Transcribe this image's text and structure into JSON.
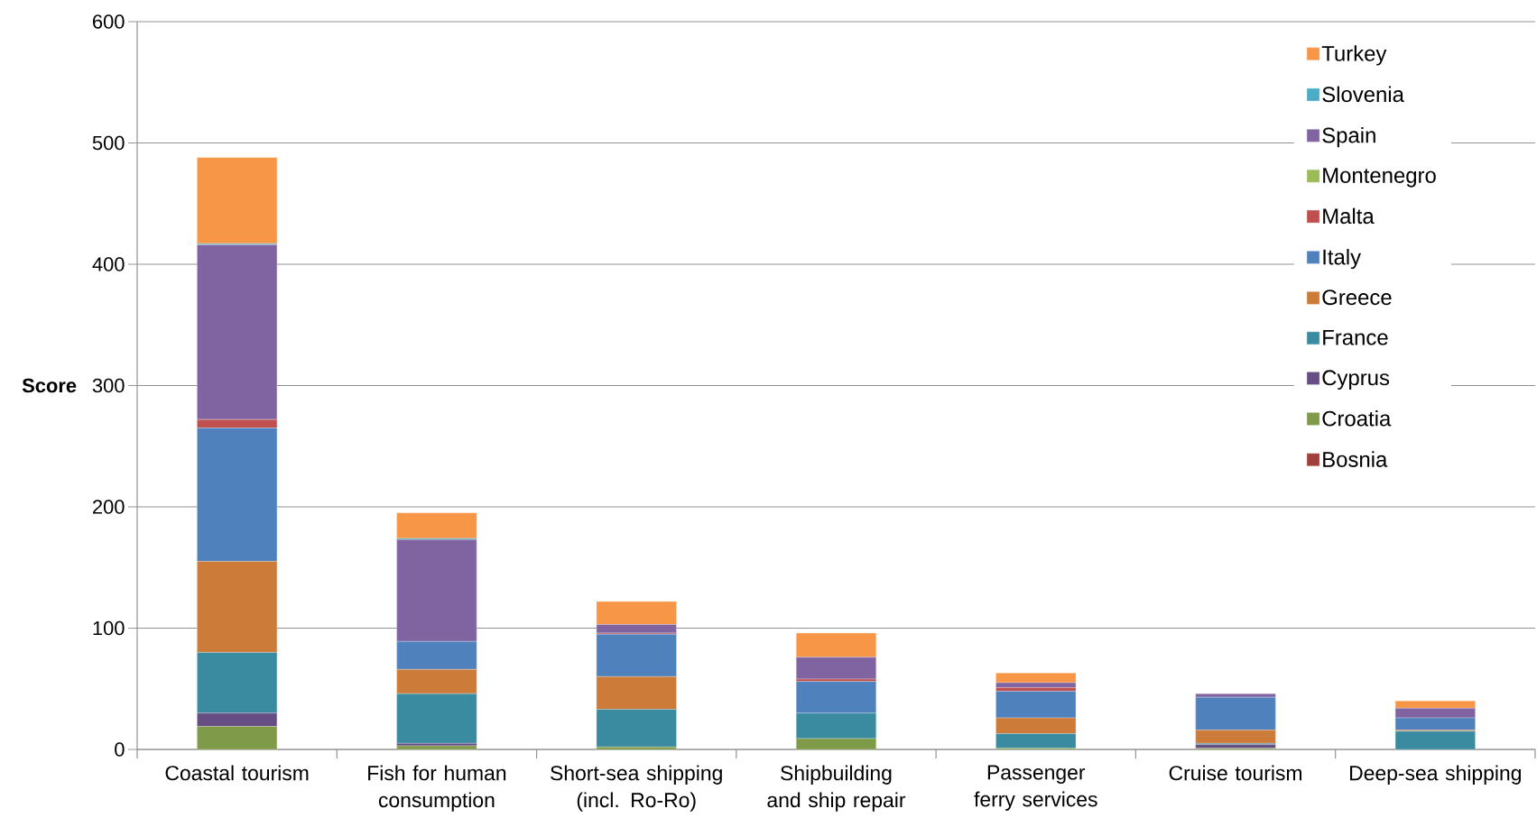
{
  "chart_data": {
    "type": "bar",
    "stacked": true,
    "ylabel": "Score",
    "categories": [
      "Coastal tourism",
      "Fish for human consumption",
      "Short-sea shipping (incl. Ro-Ro)",
      "Shipbuilding and ship repair",
      "Passenger ferry services",
      "Cruise tourism",
      "Deep-sea shipping"
    ],
    "series": [
      {
        "name": "Bosnia",
        "color": "#a23e3c",
        "values": [
          0,
          0,
          0,
          0,
          0,
          0,
          0
        ]
      },
      {
        "name": "Croatia",
        "color": "#7f9a48",
        "values": [
          19,
          3,
          2,
          9,
          1,
          1,
          0
        ]
      },
      {
        "name": "Cyprus",
        "color": "#664e84",
        "values": [
          11,
          2,
          0,
          0,
          0,
          3,
          0
        ]
      },
      {
        "name": "France",
        "color": "#3a8ba0",
        "values": [
          50,
          41,
          31,
          21,
          12,
          1,
          15
        ]
      },
      {
        "name": "Greece",
        "color": "#cc7b38",
        "values": [
          75,
          20,
          27,
          0,
          13,
          11,
          1
        ]
      },
      {
        "name": "Italy",
        "color": "#4f81bd",
        "values": [
          110,
          23,
          35,
          26,
          22,
          27,
          10
        ]
      },
      {
        "name": "Malta",
        "color": "#c0504d",
        "values": [
          7,
          0,
          1,
          2,
          3,
          0,
          0
        ]
      },
      {
        "name": "Montenegro",
        "color": "#9bbb59",
        "values": [
          0,
          0,
          0,
          0,
          0,
          0,
          0
        ]
      },
      {
        "name": "Spain",
        "color": "#8064a2",
        "values": [
          144,
          84,
          7,
          18,
          4,
          3,
          8
        ]
      },
      {
        "name": "Slovenia",
        "color": "#4bacc6",
        "values": [
          1,
          1,
          0,
          0,
          0,
          0,
          0
        ]
      },
      {
        "name": "Turkey",
        "color": "#f79646",
        "values": [
          71,
          21,
          19,
          20,
          8,
          0,
          6
        ]
      }
    ],
    "ylim": [
      0,
      600
    ],
    "yticks": [
      0,
      100,
      200,
      300,
      400,
      500,
      600
    ],
    "grid": "y",
    "legend": "top right"
  }
}
